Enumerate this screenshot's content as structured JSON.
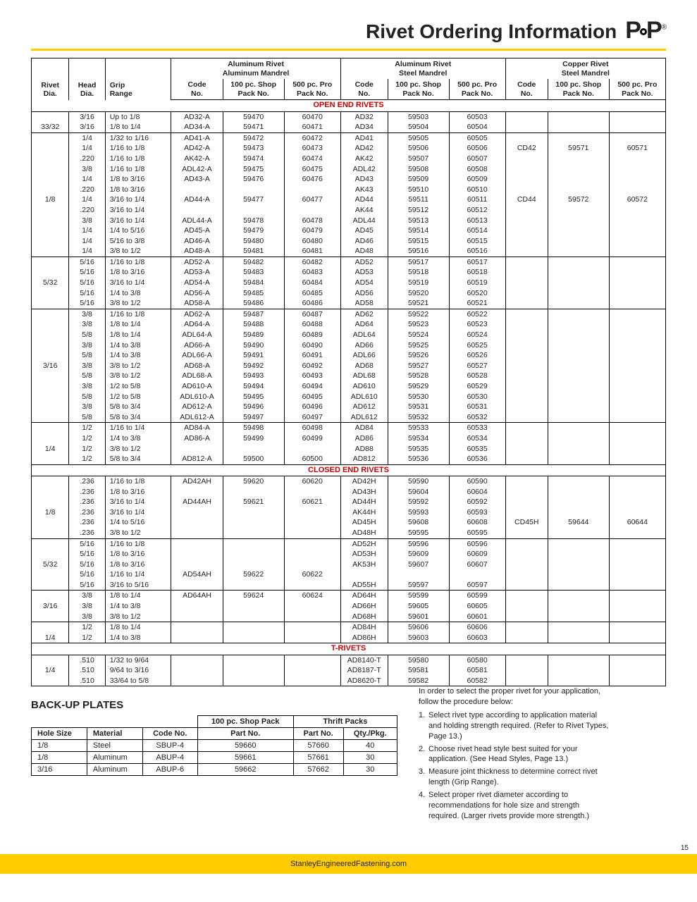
{
  "title": "Rivet Ordering Information",
  "brand": "POP",
  "footerText": "StanleyEngineeredFastening.com",
  "pageNo": "15",
  "columnGroups": [
    "Aluminum Rivet\nAluminum Mandrel",
    "Aluminum Rivet\nSteel Mandrel",
    "Copper Rivet\nSteel Mandrel"
  ],
  "subHeads": [
    "Rivet\nDia.",
    "Head\nDia.",
    "Grip\nRange",
    "Code\nNo.",
    "100 pc. Shop\nPack No.",
    "500 pc. Pro\nPack No.",
    "Code\nNo.",
    "100 pc. Shop\nPack No.",
    "500 pc. Pro\nPack No.",
    "Code\nNo.",
    "100 pc. Shop\nPack No.",
    "500 pc. Pro\nPack No."
  ],
  "sections": [
    {
      "label": "OPEN END RIVETS",
      "blocks": [
        {
          "rivetDia": "33/32",
          "rows": [
            [
              "3/16",
              "Up to 1/8",
              "AD32-A",
              "59470",
              "60470",
              "AD32",
              "59503",
              "60503",
              "",
              "",
              ""
            ],
            [
              "3/16",
              "1/8 to 1/4",
              "AD34-A",
              "59471",
              "60471",
              "AD34",
              "59504",
              "60504",
              "",
              "",
              ""
            ]
          ]
        },
        {
          "rivetDia": "1/8",
          "rows": [
            [
              "1/4",
              "1/32 to 1/16",
              "AD41-A",
              "59472",
              "60472",
              "AD41",
              "59505",
              "60505",
              "",
              "",
              ""
            ],
            [
              "1/4",
              "1/16 to 1/8",
              "AD42-A",
              "59473",
              "60473",
              "AD42",
              "59506",
              "60506",
              "CD42",
              "59571",
              "60571"
            ],
            [
              ".220",
              "1/16 to 1/8",
              "AK42-A",
              "59474",
              "60474",
              "AK42",
              "59507",
              "60507",
              "",
              "",
              ""
            ],
            [
              "3/8",
              "1/16 to 1/8",
              "ADL42-A",
              "59475",
              "60475",
              "ADL42",
              "59508",
              "60508",
              "",
              "",
              ""
            ],
            [
              "1/4",
              "1/8 to 3/16",
              "AD43-A",
              "59476",
              "60476",
              "AD43",
              "59509",
              "60509",
              "",
              "",
              ""
            ],
            [
              ".220",
              "1/8 to 3/16",
              "",
              "",
              "",
              "AK43",
              "59510",
              "60510",
              "",
              "",
              ""
            ],
            [
              "1/4",
              "3/16 to 1/4",
              "AD44-A",
              "59477",
              "60477",
              "AD44",
              "59511",
              "60511",
              "CD44",
              "59572",
              "60572"
            ],
            [
              ".220",
              "3/16 to 1/4",
              "",
              "",
              "",
              "AK44",
              "59512",
              "60512",
              "",
              "",
              ""
            ],
            [
              "3/8",
              "3/16 to 1/4",
              "ADL44-A",
              "59478",
              "60478",
              "ADL44",
              "59513",
              "60513",
              "",
              "",
              ""
            ],
            [
              "1/4",
              "1/4 to 5/16",
              "AD45-A",
              "59479",
              "60479",
              "AD45",
              "59514",
              "60514",
              "",
              "",
              ""
            ],
            [
              "1/4",
              "5/16 to 3/8",
              "AD46-A",
              "59480",
              "60480",
              "AD46",
              "59515",
              "60515",
              "",
              "",
              ""
            ],
            [
              "1/4",
              "3/8 to 1/2",
              "AD48-A",
              "59481",
              "60481",
              "AD48",
              "59516",
              "60516",
              "",
              "",
              ""
            ]
          ]
        },
        {
          "rivetDia": "5/32",
          "rows": [
            [
              "5/16",
              "1/16 to 1/8",
              "AD52-A",
              "59482",
              "60482",
              "AD52",
              "59517",
              "60517",
              "",
              "",
              ""
            ],
            [
              "5/16",
              "1/8 to 3/16",
              "AD53-A",
              "59483",
              "60483",
              "AD53",
              "59518",
              "60518",
              "",
              "",
              ""
            ],
            [
              "5/16",
              "3/16 to 1/4",
              "AD54-A",
              "59484",
              "60484",
              "AD54",
              "59519",
              "60519",
              "",
              "",
              ""
            ],
            [
              "5/16",
              "1/4 to 3/8",
              "AD56-A",
              "59485",
              "60485",
              "AD56",
              "59520",
              "60520",
              "",
              "",
              ""
            ],
            [
              "5/16",
              "3/8 to 1/2",
              "AD58-A",
              "59486",
              "60486",
              "AD58",
              "59521",
              "60521",
              "",
              "",
              ""
            ]
          ]
        },
        {
          "rivetDia": "3/16",
          "rows": [
            [
              "3/8",
              "1/16 to 1/8",
              "AD62-A",
              "59487",
              "60487",
              "AD62",
              "59522",
              "60522",
              "",
              "",
              ""
            ],
            [
              "3/8",
              "1/8 to 1/4",
              "AD64-A",
              "59488",
              "60488",
              "AD64",
              "59523",
              "60523",
              "",
              "",
              ""
            ],
            [
              "5/8",
              "1/8 to 1/4",
              "ADL64-A",
              "59489",
              "60489",
              "ADL64",
              "59524",
              "60524",
              "",
              "",
              ""
            ],
            [
              "3/8",
              "1/4 to 3/8",
              "AD66-A",
              "59490",
              "60490",
              "AD66",
              "59525",
              "60525",
              "",
              "",
              ""
            ],
            [
              "5/8",
              "1/4 to 3/8",
              "ADL66-A",
              "59491",
              "60491",
              "ADL66",
              "59526",
              "60526",
              "",
              "",
              ""
            ],
            [
              "3/8",
              "3/8 to 1/2",
              "AD68-A",
              "59492",
              "60492",
              "AD68",
              "59527",
              "60527",
              "",
              "",
              ""
            ],
            [
              "5/8",
              "3/8 to 1/2",
              "ADL68-A",
              "59493",
              "60493",
              "ADL68",
              "59528",
              "60528",
              "",
              "",
              ""
            ],
            [
              "3/8",
              "1/2 to 5/8",
              "AD610-A",
              "59494",
              "60494",
              "AD610",
              "59529",
              "60529",
              "",
              "",
              ""
            ],
            [
              "5/8",
              "1/2 to 5/8",
              "ADL610-A",
              "59495",
              "60495",
              "ADL610",
              "59530",
              "60530",
              "",
              "",
              ""
            ],
            [
              "3/8",
              "5/8 to 3/4",
              "AD612-A",
              "59496",
              "60496",
              "AD612",
              "59531",
              "60531",
              "",
              "",
              ""
            ],
            [
              "5/8",
              "5/8 to 3/4",
              "ADL612-A",
              "59497",
              "60497",
              "ADL612",
              "59532",
              "60532",
              "",
              "",
              ""
            ]
          ]
        },
        {
          "rivetDia": "1/4",
          "rows": [
            [
              "1/2",
              "1/16 to 1/4",
              "AD84-A",
              "59498",
              "60498",
              "AD84",
              "59533",
              "60533",
              "",
              "",
              ""
            ],
            [
              "1/2",
              "1/4 to 3/8",
              "AD86-A",
              "59499",
              "60499",
              "AD86",
              "59534",
              "60534",
              "",
              "",
              ""
            ],
            [
              "1/2",
              "3/8 to 1/2",
              "",
              "",
              "",
              "AD88",
              "59535",
              "60535",
              "",
              "",
              ""
            ],
            [
              "1/2",
              "5/8 to 3/4",
              "AD812-A",
              "59500",
              "60500",
              "AD812",
              "59536",
              "60536",
              "",
              "",
              ""
            ]
          ]
        }
      ]
    },
    {
      "label": "CLOSED END RIVETS",
      "blocks": [
        {
          "rivetDia": "1/8",
          "rows": [
            [
              ".236",
              "1/16 to 1/8",
              "AD42AH",
              "59620",
              "60620",
              "AD42H",
              "59590",
              "60590",
              "",
              "",
              ""
            ],
            [
              ".236",
              "1/8 to 3/16",
              "",
              "",
              "",
              "AD43H",
              "59604",
              "60604",
              "",
              "",
              ""
            ],
            [
              ".236",
              "3/16 to 1/4",
              "AD44AH",
              "59621",
              "60621",
              "AD44H",
              "59592",
              "60592",
              "",
              "",
              ""
            ],
            [
              ".236",
              "3/16 to 1/4",
              "",
              "",
              "",
              "AK44H",
              "59593",
              "60593",
              "",
              "",
              ""
            ],
            [
              ".236",
              "1/4 to 5/16",
              "",
              "",
              "",
              "AD45H",
              "59608",
              "60608",
              "CD45H",
              "59644",
              "60644"
            ],
            [
              ".236",
              "3/8 to 1/2",
              "",
              "",
              "",
              "AD48H",
              "59595",
              "60595",
              "",
              "",
              ""
            ]
          ]
        },
        {
          "rivetDia": "5/32",
          "rows": [
            [
              "5/16",
              "1/16 to 1/8",
              "",
              "",
              "",
              "AD52H",
              "59596",
              "60596",
              "",
              "",
              ""
            ],
            [
              "5/16",
              "1/8 to 3/16",
              "",
              "",
              "",
              "AD53H",
              "59609",
              "60609",
              "",
              "",
              ""
            ],
            [
              "5/16",
              "1/8 to 3/16",
              "",
              "",
              "",
              "AK53H",
              "59607",
              "60607",
              "",
              "",
              ""
            ],
            [
              "5/16",
              "1/16 to 1/4",
              "AD54AH",
              "59622",
              "60622",
              "",
              "",
              "",
              "",
              "",
              ""
            ],
            [
              "5/16",
              "3/16 to 5/16",
              "",
              "",
              "",
              "AD55H",
              "59597",
              "60597",
              "",
              "",
              ""
            ]
          ]
        },
        {
          "rivetDia": "3/16",
          "rows": [
            [
              "3/8",
              "1/8 to 1/4",
              "AD64AH",
              "59624",
              "60624",
              "AD64H",
              "59599",
              "60599",
              "",
              "",
              ""
            ],
            [
              "3/8",
              "1/4 to 3/8",
              "",
              "",
              "",
              "AD66H",
              "59605",
              "60605",
              "",
              "",
              ""
            ],
            [
              "3/8",
              "3/8 to 1/2",
              "",
              "",
              "",
              "AD68H",
              "59601",
              "60601",
              "",
              "",
              ""
            ]
          ]
        },
        {
          "rivetDia": "1/4",
          "rows": [
            [
              "1/2",
              "1/8 to 1/4",
              "",
              "",
              "",
              "AD84H",
              "59606",
              "60606",
              "",
              "",
              ""
            ],
            [
              "1/2",
              "1/4 to 3/8",
              "",
              "",
              "",
              "AD86H",
              "59603",
              "60603",
              "",
              "",
              ""
            ]
          ]
        }
      ]
    },
    {
      "label": "T-RIVETS",
      "blocks": [
        {
          "rivetDia": "1/4",
          "rows": [
            [
              ".510",
              "1/32 to 9/64",
              "",
              "",
              "",
              "AD8140-T",
              "59580",
              "60580",
              "",
              "",
              ""
            ],
            [
              ".510",
              "9/64 to 3/16",
              "",
              "",
              "",
              "AD8187-T",
              "59581",
              "60581",
              "",
              "",
              ""
            ],
            [
              ".510",
              "33/64 to 5/8",
              "",
              "",
              "",
              "AD8620-T",
              "59582",
              "60582",
              "",
              "",
              ""
            ]
          ]
        }
      ]
    }
  ],
  "backupTitle": "BACK-UP PLATES",
  "backupHeads": {
    "g1": "100 pc. Shop Pack",
    "g2": "Thrift Packs",
    "c": [
      "Hole Size",
      "Material",
      "Code No.",
      "Part No.",
      "Part No.",
      "Qty./Pkg."
    ]
  },
  "backupRows": [
    [
      "1/8",
      "Steel",
      "SBUP-4",
      "59660",
      "57660",
      "40"
    ],
    [
      "1/8",
      "Aluminum",
      "ABUP-4",
      "59661",
      "57661",
      "30"
    ],
    [
      "3/16",
      "Aluminum",
      "ABUP-6",
      "59662",
      "57662",
      "30"
    ]
  ],
  "instrIntro": "In order to select the proper rivet for your application, follow the procedure below:",
  "instrSteps": [
    "Select rivet type according to application material and holding strength required. (Refer to Rivet Types, Page 13.)",
    "Choose rivet head style best suited for your application. (See Head Styles, Page 13.)",
    "Measure joint thickness to determine correct rivet length (Grip Range).",
    "Select proper rivet diameter according to recommendations for hole size and strength required. (Larger rivets provide more strength.)"
  ]
}
